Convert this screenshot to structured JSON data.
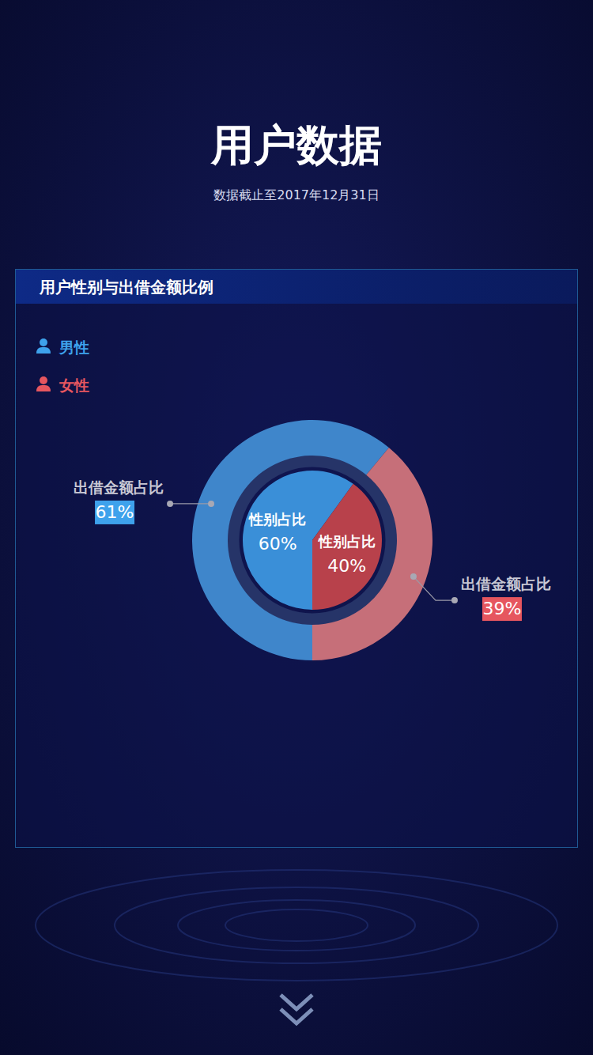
{
  "header": {
    "title": "用户数据",
    "subtitle": "数据截止至2017年12月31日"
  },
  "chart_data": {
    "type": "pie",
    "title": "用户性别与出借金额比例",
    "categories": [
      "男性",
      "女性"
    ],
    "colors": [
      "#3ea2ec",
      "#e6565f"
    ],
    "legend": "top-left",
    "data_labels": true,
    "series": [
      {
        "name": "性别占比",
        "values": [
          60,
          40
        ],
        "value_labels": [
          "60%",
          "40%"
        ],
        "colors": [
          "#3a8fd8",
          "#b8414b"
        ]
      },
      {
        "name": "出借金额占比",
        "values": [
          61,
          39
        ],
        "value_labels": [
          "61%",
          "39%"
        ],
        "colors": [
          "#3f86cb",
          "#c66f79"
        ]
      }
    ]
  }
}
